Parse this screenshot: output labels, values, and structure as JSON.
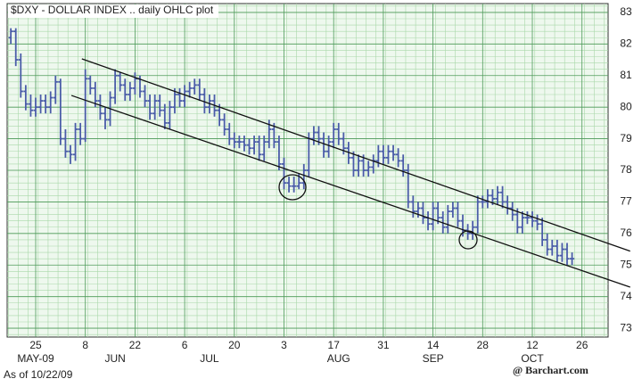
{
  "chart_data": {
    "type": "ohlc",
    "title": "$DXY - DOLLAR INDEX .. daily OHLC plot",
    "color": "#4a5ca8",
    "categories": [
      null,
      null,
      null,
      null,
      null,
      "25",
      null,
      null,
      null,
      null,
      null,
      null,
      null,
      null,
      null,
      "8",
      null,
      null,
      null,
      null,
      null,
      null,
      null,
      null,
      null,
      "22",
      null,
      null,
      null,
      null,
      null,
      null,
      null,
      null,
      null,
      "6",
      null,
      null,
      null,
      null,
      null,
      null,
      null,
      null,
      null,
      "20",
      null,
      null,
      null,
      null,
      null,
      null,
      null,
      null,
      null,
      "3",
      null,
      null,
      null,
      null,
      null,
      null,
      null,
      null,
      null,
      "17",
      null,
      null,
      null,
      null,
      null,
      null,
      null,
      null,
      null,
      "31",
      null,
      null,
      null,
      null,
      null,
      null,
      null,
      null,
      null,
      "14",
      null,
      null,
      null,
      null,
      null,
      null,
      null,
      null,
      null,
      "28",
      null,
      null,
      null,
      null,
      null,
      null,
      null,
      null,
      null,
      "12",
      null,
      null,
      null,
      null,
      null,
      null,
      null,
      null,
      null,
      "26",
      null
    ],
    "months": [
      "MAY-09",
      "JUN",
      "JUL",
      "AUG",
      "SEP",
      "OCT"
    ],
    "as_of": "As of 10/22/09",
    "source": "@ Barchart.com",
    "values": [
      [
        82.2,
        82.5,
        82.0,
        82.4
      ],
      [
        82.4,
        82.5,
        81.3,
        81.5
      ],
      [
        81.5,
        81.7,
        80.3,
        80.5
      ],
      [
        80.5,
        80.7,
        79.9,
        80.1
      ],
      [
        80.1,
        80.4,
        79.7,
        79.9
      ],
      [
        79.9,
        80.3,
        79.7,
        80.0
      ],
      [
        80.0,
        80.4,
        79.8,
        80.2
      ],
      [
        80.2,
        80.4,
        79.8,
        80.0
      ],
      [
        80.0,
        80.5,
        79.8,
        80.3
      ],
      [
        80.3,
        81.0,
        80.1,
        80.8
      ],
      [
        80.8,
        80.9,
        78.8,
        79.0
      ],
      [
        79.0,
        79.3,
        78.4,
        78.6
      ],
      [
        78.6,
        78.8,
        78.2,
        78.5
      ],
      [
        78.5,
        79.5,
        78.3,
        79.3
      ],
      [
        79.3,
        79.5,
        78.8,
        79.0
      ],
      [
        79.0,
        81.2,
        78.9,
        80.9
      ],
      [
        80.9,
        81.0,
        80.4,
        80.6
      ],
      [
        80.6,
        80.8,
        80.0,
        80.2
      ],
      [
        80.2,
        80.4,
        79.6,
        79.8
      ],
      [
        79.8,
        80.0,
        79.3,
        79.6
      ],
      [
        79.6,
        80.5,
        79.4,
        80.3
      ],
      [
        80.3,
        81.2,
        80.1,
        81.0
      ],
      [
        81.0,
        81.1,
        80.5,
        80.7
      ],
      [
        80.7,
        80.9,
        80.2,
        80.4
      ],
      [
        80.4,
        80.8,
        80.2,
        80.6
      ],
      [
        80.6,
        81.1,
        80.4,
        80.9
      ],
      [
        80.9,
        81.0,
        80.3,
        80.5
      ],
      [
        80.5,
        80.7,
        80.0,
        80.2
      ],
      [
        80.2,
        80.4,
        79.6,
        79.8
      ],
      [
        79.8,
        80.4,
        79.6,
        80.2
      ],
      [
        80.2,
        80.4,
        79.7,
        79.9
      ],
      [
        79.9,
        80.1,
        79.3,
        79.5
      ],
      [
        79.5,
        80.2,
        79.3,
        80.0
      ],
      [
        80.0,
        80.6,
        79.8,
        80.4
      ],
      [
        80.4,
        80.6,
        80.0,
        80.2
      ],
      [
        80.2,
        80.7,
        80.0,
        80.5
      ],
      [
        80.5,
        80.8,
        80.3,
        80.6
      ],
      [
        80.6,
        80.9,
        80.4,
        80.7
      ],
      [
        80.7,
        80.9,
        80.2,
        80.4
      ],
      [
        80.4,
        80.6,
        79.8,
        80.0
      ],
      [
        80.0,
        80.4,
        79.8,
        80.2
      ],
      [
        80.2,
        80.4,
        79.7,
        79.9
      ],
      [
        79.9,
        80.1,
        79.4,
        79.6
      ],
      [
        79.6,
        79.8,
        79.1,
        79.3
      ],
      [
        79.3,
        79.5,
        78.8,
        79.0
      ],
      [
        79.0,
        79.2,
        78.7,
        78.9
      ],
      [
        78.9,
        79.1,
        78.7,
        78.9
      ],
      [
        78.9,
        79.1,
        78.6,
        78.8
      ],
      [
        78.8,
        79.0,
        78.5,
        78.7
      ],
      [
        78.7,
        79.1,
        78.5,
        78.9
      ],
      [
        78.9,
        79.1,
        78.3,
        78.5
      ],
      [
        78.5,
        79.1,
        78.3,
        78.9
      ],
      [
        78.9,
        79.6,
        78.7,
        79.3
      ],
      [
        79.3,
        79.5,
        78.7,
        78.9
      ],
      [
        78.9,
        79.1,
        78.0,
        78.2
      ],
      [
        78.2,
        78.4,
        77.4,
        77.6
      ],
      [
        77.6,
        77.8,
        77.3,
        77.5
      ],
      [
        77.5,
        77.8,
        77.3,
        77.5
      ],
      [
        77.5,
        77.9,
        77.4,
        77.6
      ],
      [
        77.6,
        78.2,
        77.4,
        78.0
      ],
      [
        78.0,
        79.2,
        77.8,
        79.0
      ],
      [
        79.0,
        79.4,
        78.8,
        79.2
      ],
      [
        79.2,
        79.4,
        78.8,
        79.0
      ],
      [
        79.0,
        79.2,
        78.4,
        78.6
      ],
      [
        78.6,
        79.1,
        78.4,
        78.9
      ],
      [
        78.9,
        79.5,
        78.7,
        79.3
      ],
      [
        79.3,
        79.5,
        78.8,
        79.0
      ],
      [
        79.0,
        79.2,
        78.5,
        78.7
      ],
      [
        78.7,
        78.9,
        78.2,
        78.4
      ],
      [
        78.4,
        78.6,
        77.8,
        78.0
      ],
      [
        78.0,
        78.5,
        77.8,
        78.3
      ],
      [
        78.3,
        78.5,
        77.8,
        78.0
      ],
      [
        78.0,
        78.3,
        77.8,
        78.1
      ],
      [
        78.1,
        78.5,
        77.9,
        78.3
      ],
      [
        78.3,
        78.8,
        78.1,
        78.6
      ],
      [
        78.6,
        78.8,
        78.2,
        78.4
      ],
      [
        78.4,
        78.8,
        78.2,
        78.6
      ],
      [
        78.6,
        78.8,
        78.3,
        78.5
      ],
      [
        78.5,
        78.7,
        78.1,
        78.3
      ],
      [
        78.3,
        78.5,
        77.8,
        78.0
      ],
      [
        78.0,
        78.2,
        76.8,
        77.0
      ],
      [
        77.0,
        77.2,
        76.5,
        76.7
      ],
      [
        76.7,
        77.0,
        76.5,
        76.8
      ],
      [
        76.8,
        77.0,
        76.3,
        76.5
      ],
      [
        76.5,
        76.7,
        76.1,
        76.3
      ],
      [
        76.3,
        77.0,
        76.1,
        76.8
      ],
      [
        76.8,
        77.0,
        76.3,
        76.5
      ],
      [
        76.5,
        76.7,
        76.0,
        76.2
      ],
      [
        76.2,
        76.9,
        76.0,
        76.7
      ],
      [
        76.7,
        77.0,
        76.5,
        76.8
      ],
      [
        76.8,
        77.0,
        76.2,
        76.4
      ],
      [
        76.4,
        76.6,
        75.9,
        76.1
      ],
      [
        76.1,
        76.3,
        75.8,
        76.0
      ],
      [
        76.0,
        76.4,
        75.8,
        76.2
      ],
      [
        76.2,
        77.2,
        76.0,
        77.0
      ],
      [
        77.0,
        77.2,
        76.8,
        77.0
      ],
      [
        77.0,
        77.4,
        76.8,
        77.2
      ],
      [
        77.2,
        77.4,
        76.9,
        77.1
      ],
      [
        77.1,
        77.5,
        76.9,
        77.3
      ],
      [
        77.3,
        77.5,
        76.8,
        77.0
      ],
      [
        77.0,
        77.2,
        76.6,
        76.8
      ],
      [
        76.8,
        77.0,
        76.4,
        76.6
      ],
      [
        76.6,
        76.8,
        76.0,
        76.2
      ],
      [
        76.2,
        76.7,
        76.0,
        76.5
      ],
      [
        76.5,
        76.7,
        76.3,
        76.5
      ],
      [
        76.5,
        76.7,
        76.2,
        76.4
      ],
      [
        76.4,
        76.6,
        76.1,
        76.3
      ],
      [
        76.3,
        76.5,
        75.6,
        75.8
      ],
      [
        75.8,
        76.0,
        75.3,
        75.5
      ],
      [
        75.5,
        75.8,
        75.3,
        75.6
      ],
      [
        75.6,
        75.8,
        75.1,
        75.3
      ],
      [
        75.3,
        75.7,
        75.1,
        75.5
      ],
      [
        75.5,
        75.7,
        75.0,
        75.2
      ],
      [
        75.2,
        75.4,
        75.0,
        75.2
      ],
      null,
      null,
      null
    ],
    "trendlines": [
      {
        "x": [
          14.3,
          124.7
        ],
        "y": [
          81.53,
          75.44
        ]
      },
      {
        "x": [
          12.2,
          124.7
        ],
        "y": [
          80.37,
          74.3
        ]
      }
    ],
    "ylim": [
      72.72,
      83.28
    ],
    "yticks": [
      73,
      74,
      75,
      76,
      77,
      78,
      79,
      80,
      81,
      82,
      83
    ],
    "grid": true
  }
}
